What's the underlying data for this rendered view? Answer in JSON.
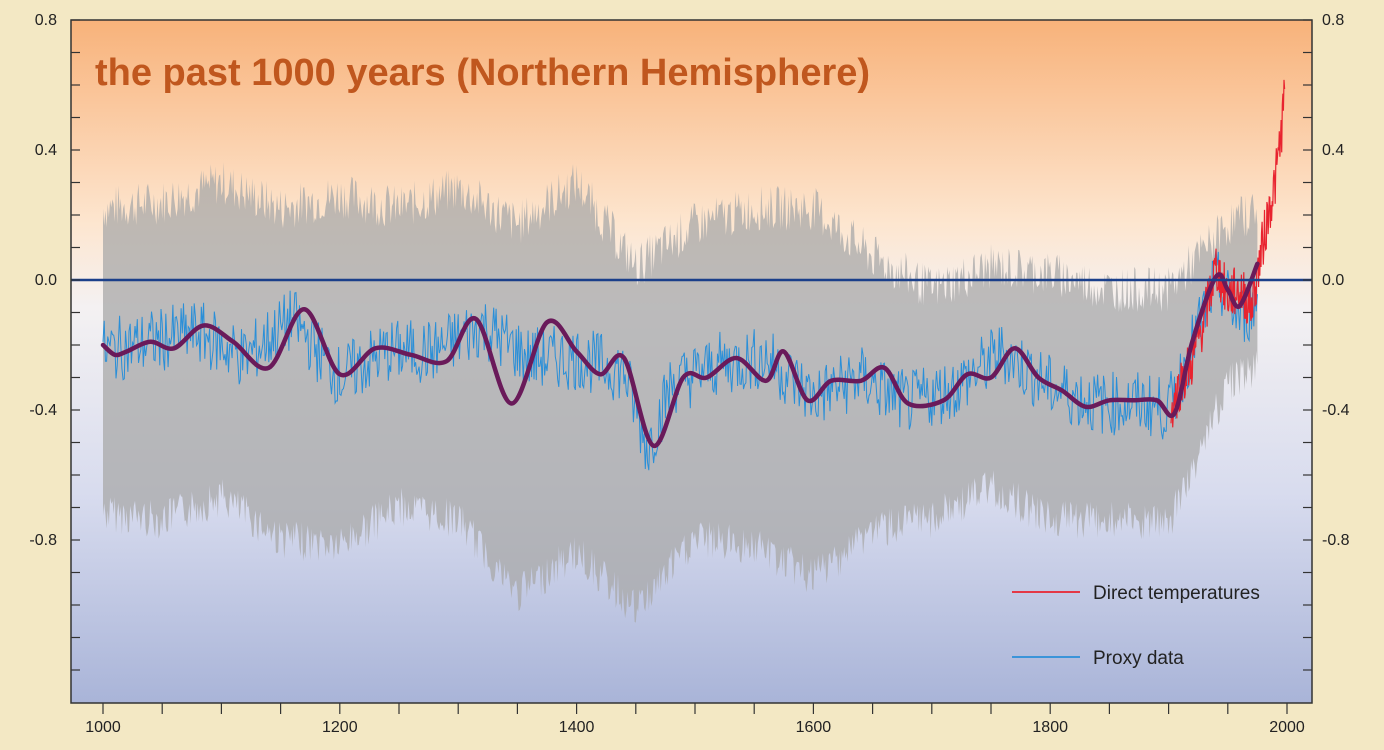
{
  "chart_data": {
    "type": "line",
    "title": "the past 1000 years (Northern Hemisphere)",
    "xlabel": "",
    "ylabel": "",
    "xlim": [
      1000,
      2000
    ],
    "ylim": [
      -1.28,
      0.8
    ],
    "x_ticks": [
      1000,
      1200,
      1400,
      1600,
      1800,
      2000
    ],
    "x_tick_labels": [
      "1000",
      "1200",
      "1400",
      "1600",
      "1800",
      "2000"
    ],
    "y_ticks": [
      0.8,
      0.4,
      0.0,
      -0.4,
      -0.8
    ],
    "y_tick_labels": [
      "0.8",
      "0.4",
      "0.0",
      "-0.4",
      "-0.8"
    ],
    "y_tick_labels_right": [
      "0.8",
      "0.4",
      "0.0",
      "-0.4",
      "-0.8"
    ],
    "reference_line": 0.0,
    "grid": false,
    "legend_position": "bottom-right",
    "legend": [
      {
        "label": "Direct temperatures",
        "color": "#e8232f"
      },
      {
        "label": "Proxy data",
        "color": "#2a8fd8"
      }
    ],
    "colors": {
      "smooth": "#6a1a5a",
      "uncertainty": "#a8a8a8",
      "zero_line": "#1b3f8a",
      "title": "#c0571e",
      "bg_top": "#f8b27a",
      "bg_bottom": "#a9b4d8"
    },
    "smoothed_series": {
      "x": [
        1000,
        1010,
        1020,
        1040,
        1060,
        1085,
        1110,
        1140,
        1170,
        1200,
        1230,
        1260,
        1290,
        1315,
        1345,
        1375,
        1400,
        1420,
        1440,
        1465,
        1490,
        1510,
        1535,
        1560,
        1575,
        1595,
        1615,
        1640,
        1660,
        1680,
        1710,
        1730,
        1750,
        1770,
        1790,
        1810,
        1830,
        1850,
        1870,
        1890,
        1905,
        1920,
        1940,
        1950,
        1960,
        1975
      ],
      "y": [
        -0.2,
        -0.23,
        -0.22,
        -0.19,
        -0.21,
        -0.14,
        -0.19,
        -0.27,
        -0.09,
        -0.29,
        -0.21,
        -0.23,
        -0.25,
        -0.12,
        -0.38,
        -0.13,
        -0.22,
        -0.29,
        -0.24,
        -0.51,
        -0.3,
        -0.3,
        -0.24,
        -0.31,
        -0.22,
        -0.37,
        -0.31,
        -0.31,
        -0.27,
        -0.38,
        -0.37,
        -0.29,
        -0.3,
        -0.21,
        -0.3,
        -0.34,
        -0.39,
        -0.37,
        -0.37,
        -0.37,
        -0.41,
        -0.19,
        0.01,
        -0.03,
        -0.08,
        0.05
      ]
    },
    "uncertainty_band": {
      "x": [
        1000,
        1050,
        1100,
        1150,
        1200,
        1250,
        1300,
        1350,
        1400,
        1450,
        1500,
        1550,
        1600,
        1650,
        1700,
        1750,
        1800,
        1850,
        1900,
        1950,
        1975
      ],
      "upper": [
        0.2,
        0.22,
        0.28,
        0.2,
        0.24,
        0.2,
        0.26,
        0.15,
        0.28,
        0.02,
        0.15,
        0.2,
        0.2,
        0.05,
        -0.05,
        0.02,
        0.0,
        -0.05,
        -0.05,
        0.15,
        0.2
      ],
      "lower": [
        -0.7,
        -0.72,
        -0.65,
        -0.78,
        -0.8,
        -0.68,
        -0.72,
        -0.95,
        -0.82,
        -1.0,
        -0.78,
        -0.8,
        -0.9,
        -0.75,
        -0.72,
        -0.62,
        -0.72,
        -0.72,
        -0.74,
        -0.3,
        -0.25
      ]
    },
    "series": [
      {
        "name": "Proxy data",
        "x": [
          1000,
          1040,
          1080,
          1120,
          1160,
          1200,
          1240,
          1280,
          1320,
          1360,
          1400,
          1440,
          1460,
          1480,
          1520,
          1560,
          1600,
          1640,
          1680,
          1720,
          1760,
          1800,
          1840,
          1880,
          1900,
          1920,
          1940,
          1960,
          1980
        ],
        "y": [
          -0.22,
          -0.19,
          -0.16,
          -0.24,
          -0.12,
          -0.3,
          -0.22,
          -0.22,
          -0.14,
          -0.24,
          -0.24,
          -0.28,
          -0.52,
          -0.32,
          -0.26,
          -0.24,
          -0.36,
          -0.3,
          -0.38,
          -0.33,
          -0.22,
          -0.33,
          -0.38,
          -0.38,
          -0.4,
          -0.2,
          0.0,
          -0.12,
          -0.05
        ]
      },
      {
        "name": "Direct temperatures",
        "x": [
          1902,
          1910,
          1920,
          1930,
          1940,
          1950,
          1960,
          1970,
          1980,
          1985,
          1990,
          1995,
          1998
        ],
        "y": [
          -0.4,
          -0.32,
          -0.25,
          -0.12,
          0.04,
          -0.05,
          -0.03,
          -0.08,
          0.12,
          0.22,
          0.3,
          0.45,
          0.58
        ]
      }
    ]
  }
}
